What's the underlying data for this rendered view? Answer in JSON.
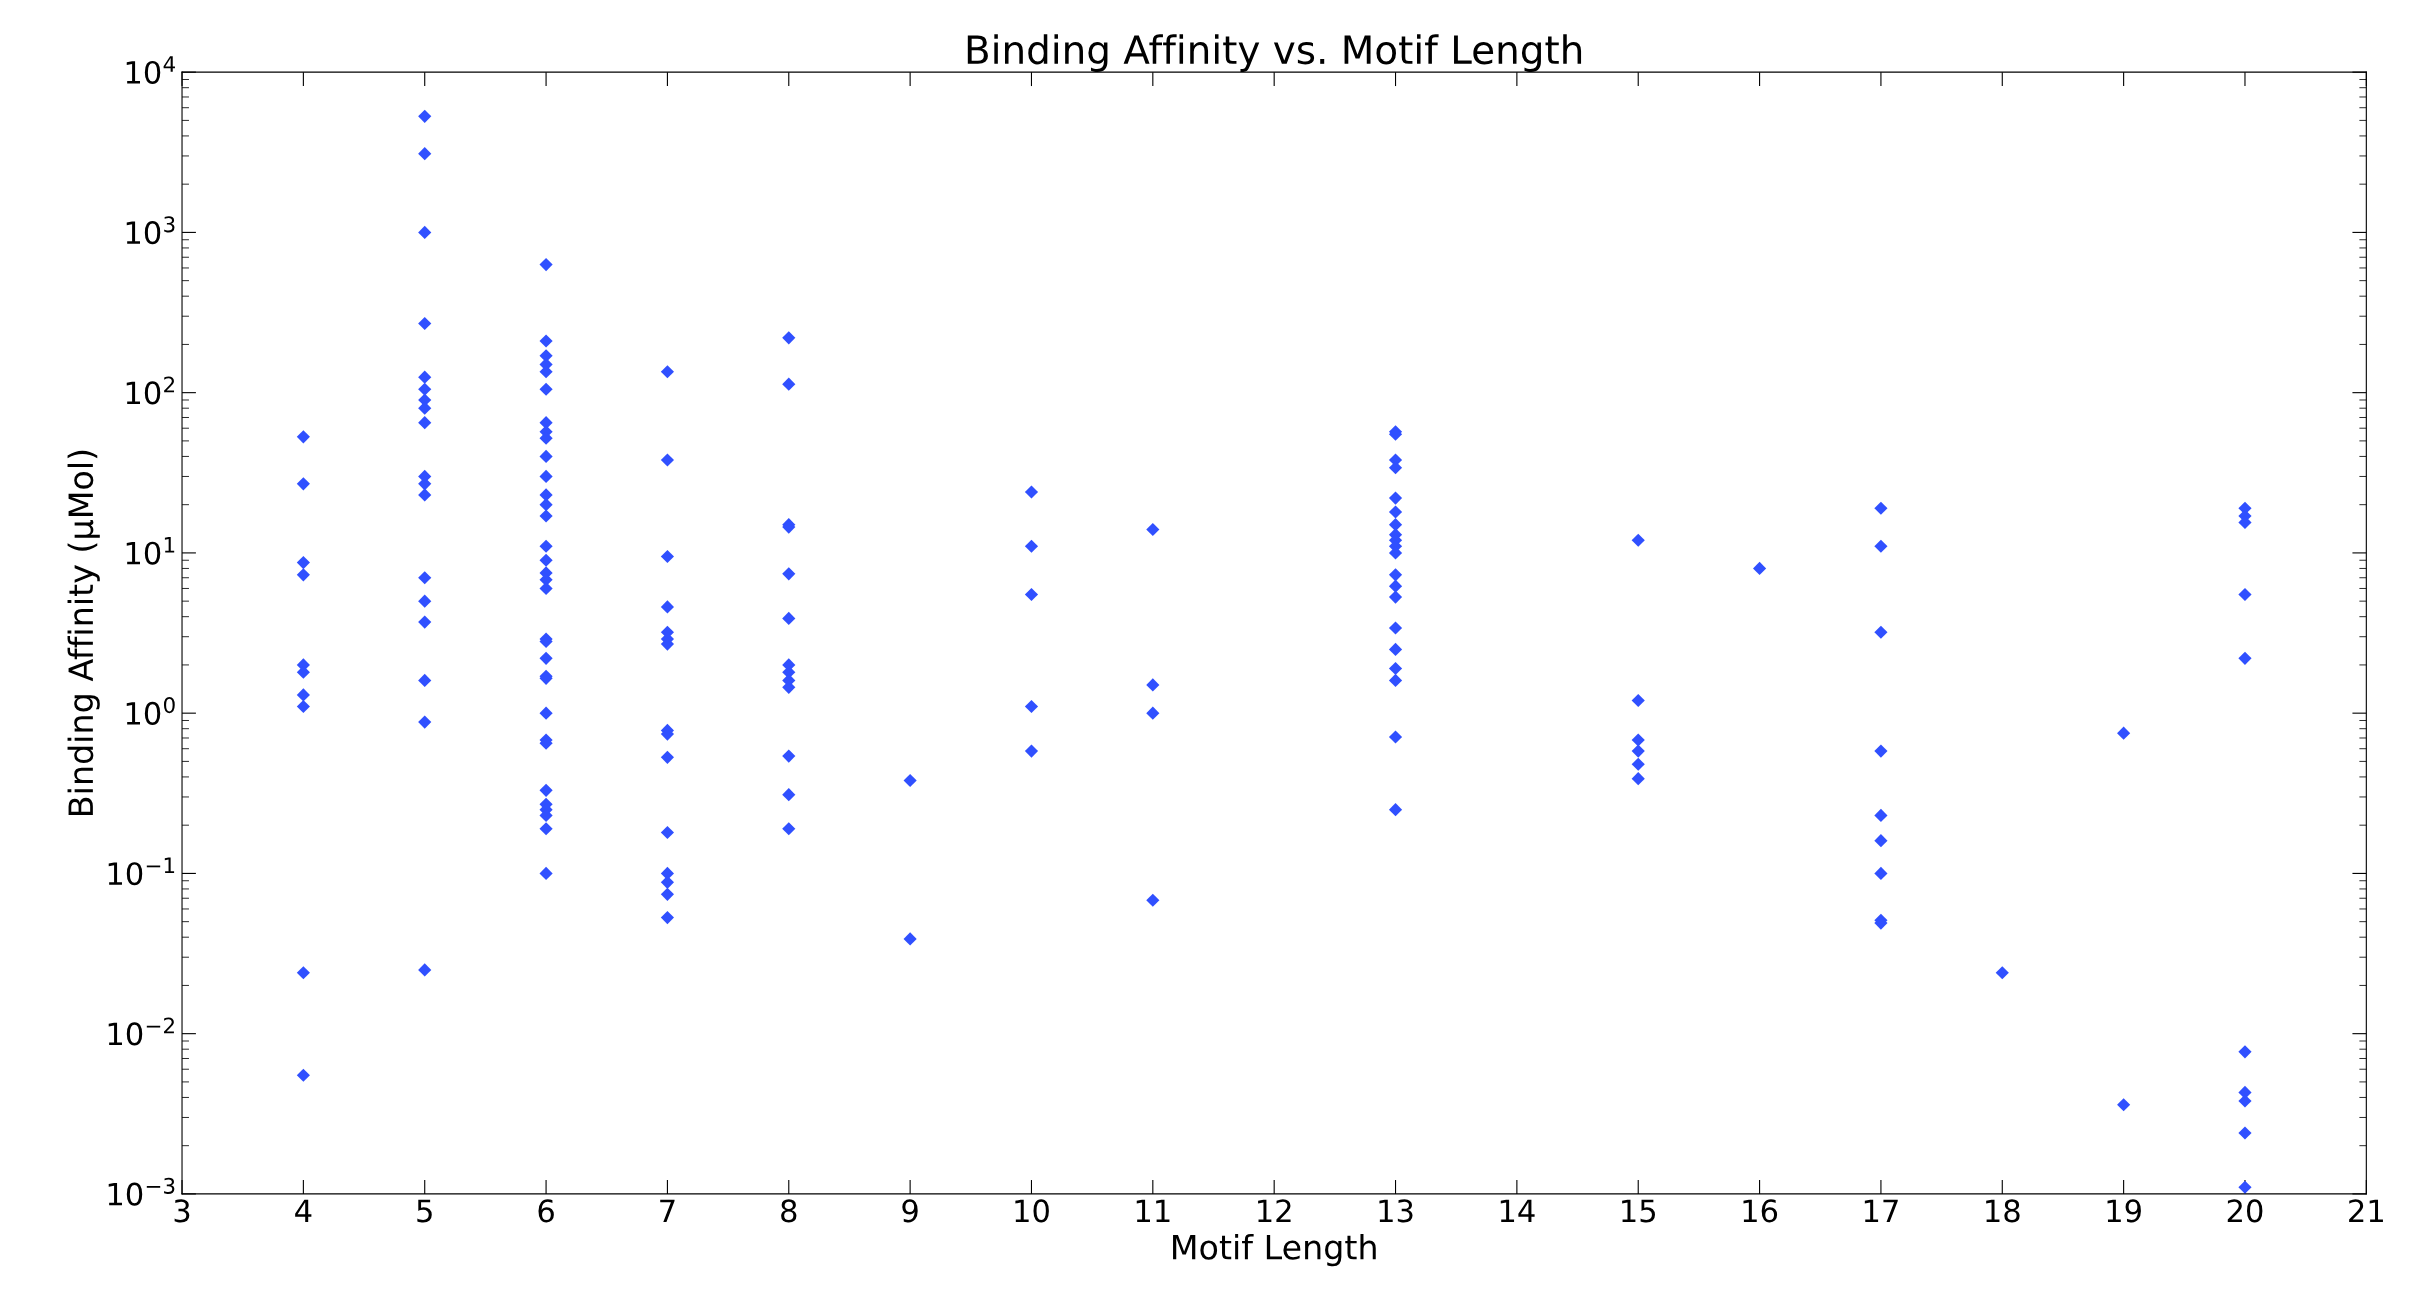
{
  "chart_data": {
    "type": "scatter",
    "title": "Binding Affinity vs. Motif Length",
    "xlabel": "Motif Length",
    "ylabel": "Binding Affinity (μMol)",
    "log": "y",
    "marker": "diamond",
    "grid": false,
    "xlim": [
      3,
      21
    ],
    "xticks": [
      3,
      4,
      5,
      6,
      7,
      8,
      9,
      10,
      11,
      12,
      13,
      14,
      15,
      16,
      17,
      18,
      19,
      20,
      21
    ],
    "ylim": [
      0.001,
      10000
    ],
    "yticks": [
      {
        "value": 0.001,
        "label": "10$^{−3}$"
      },
      {
        "value": 0.01,
        "label": "10$^{−2}$"
      },
      {
        "value": 0.1,
        "label": "10$^{−1}$"
      },
      {
        "value": 1,
        "label": "10$^{0}$"
      },
      {
        "value": 10,
        "label": "10$^{1}$"
      },
      {
        "value": 100,
        "label": "10$^{2}$"
      },
      {
        "value": 1000,
        "label": "10$^{3}$"
      },
      {
        "value": 10000,
        "label": "10$^{4}$"
      }
    ],
    "series": [
      {
        "color": "#3050ff",
        "x": [
          4,
          4,
          4,
          4,
          4,
          4,
          4,
          4,
          4,
          4,
          5,
          5,
          5,
          5,
          5,
          5,
          5,
          5,
          5,
          5,
          5,
          5,
          5,
          5,
          5,
          5,
          5,
          5,
          6,
          6,
          6,
          6,
          6,
          6,
          6,
          6,
          6,
          6,
          6,
          6,
          6,
          6,
          6,
          6,
          6,
          6,
          6,
          6,
          6,
          6,
          6,
          6,
          6,
          6,
          6,
          6,
          6,
          6,
          6,
          6,
          6,
          7,
          7,
          7,
          7,
          7,
          7,
          7,
          7,
          7,
          7,
          7,
          7,
          7,
          7,
          7,
          8,
          8,
          8,
          8,
          8,
          8,
          8,
          8,
          8,
          8,
          8,
          8,
          8,
          9,
          9,
          10,
          10,
          10,
          10,
          10,
          11,
          11,
          11,
          11,
          13,
          13,
          13,
          13,
          13,
          13,
          13,
          13,
          13,
          13,
          13,
          13,
          13,
          13,
          13,
          13,
          13,
          13,
          13,
          13,
          15,
          15,
          15,
          15,
          15,
          15,
          16,
          17,
          17,
          17,
          17,
          17,
          17,
          17,
          17,
          17,
          18,
          19,
          19,
          20,
          20,
          20,
          20,
          20,
          20,
          20,
          20,
          20,
          20
        ],
        "values": [
          53,
          27,
          8.7,
          7.3,
          2.0,
          1.8,
          1.3,
          1.1,
          0.024,
          0.0055,
          5300,
          3100,
          1000,
          270,
          125,
          105,
          90,
          80,
          65,
          30,
          27,
          23,
          7,
          5,
          3.7,
          1.6,
          0.88,
          0.025,
          630,
          210,
          170,
          150,
          135,
          105,
          65,
          57,
          52,
          40,
          30,
          23,
          20,
          17,
          11,
          9,
          7.5,
          6.8,
          6,
          2.9,
          2.8,
          2.2,
          1.7,
          1.65,
          1.0,
          0.68,
          0.65,
          0.33,
          0.27,
          0.25,
          0.23,
          0.19,
          0.1,
          135,
          38,
          9.5,
          4.6,
          3.2,
          2.9,
          2.7,
          0.78,
          0.74,
          0.53,
          0.18,
          0.1,
          0.088,
          0.074,
          0.053,
          220,
          113,
          15,
          14.5,
          7.4,
          3.9,
          2.0,
          1.8,
          1.6,
          1.45,
          0.54,
          0.31,
          0.19,
          0.38,
          0.039,
          24,
          11,
          5.5,
          1.1,
          0.58,
          14,
          1.5,
          1.0,
          0.068,
          57,
          55,
          38,
          34,
          22,
          18,
          15,
          13,
          12,
          11,
          10,
          7.3,
          6.2,
          5.3,
          3.4,
          2.5,
          1.9,
          1.6,
          0.71,
          0.25,
          12,
          1.2,
          0.68,
          0.58,
          0.48,
          0.39,
          8,
          19,
          11,
          3.2,
          0.58,
          0.23,
          0.16,
          0.1,
          0.051,
          0.049,
          0.024,
          0.75,
          0.0036,
          19,
          17,
          15.5,
          5.5,
          2.2,
          0.0077,
          0.0043,
          0.0038,
          0.0024,
          0.0011
        ]
      }
    ]
  }
}
